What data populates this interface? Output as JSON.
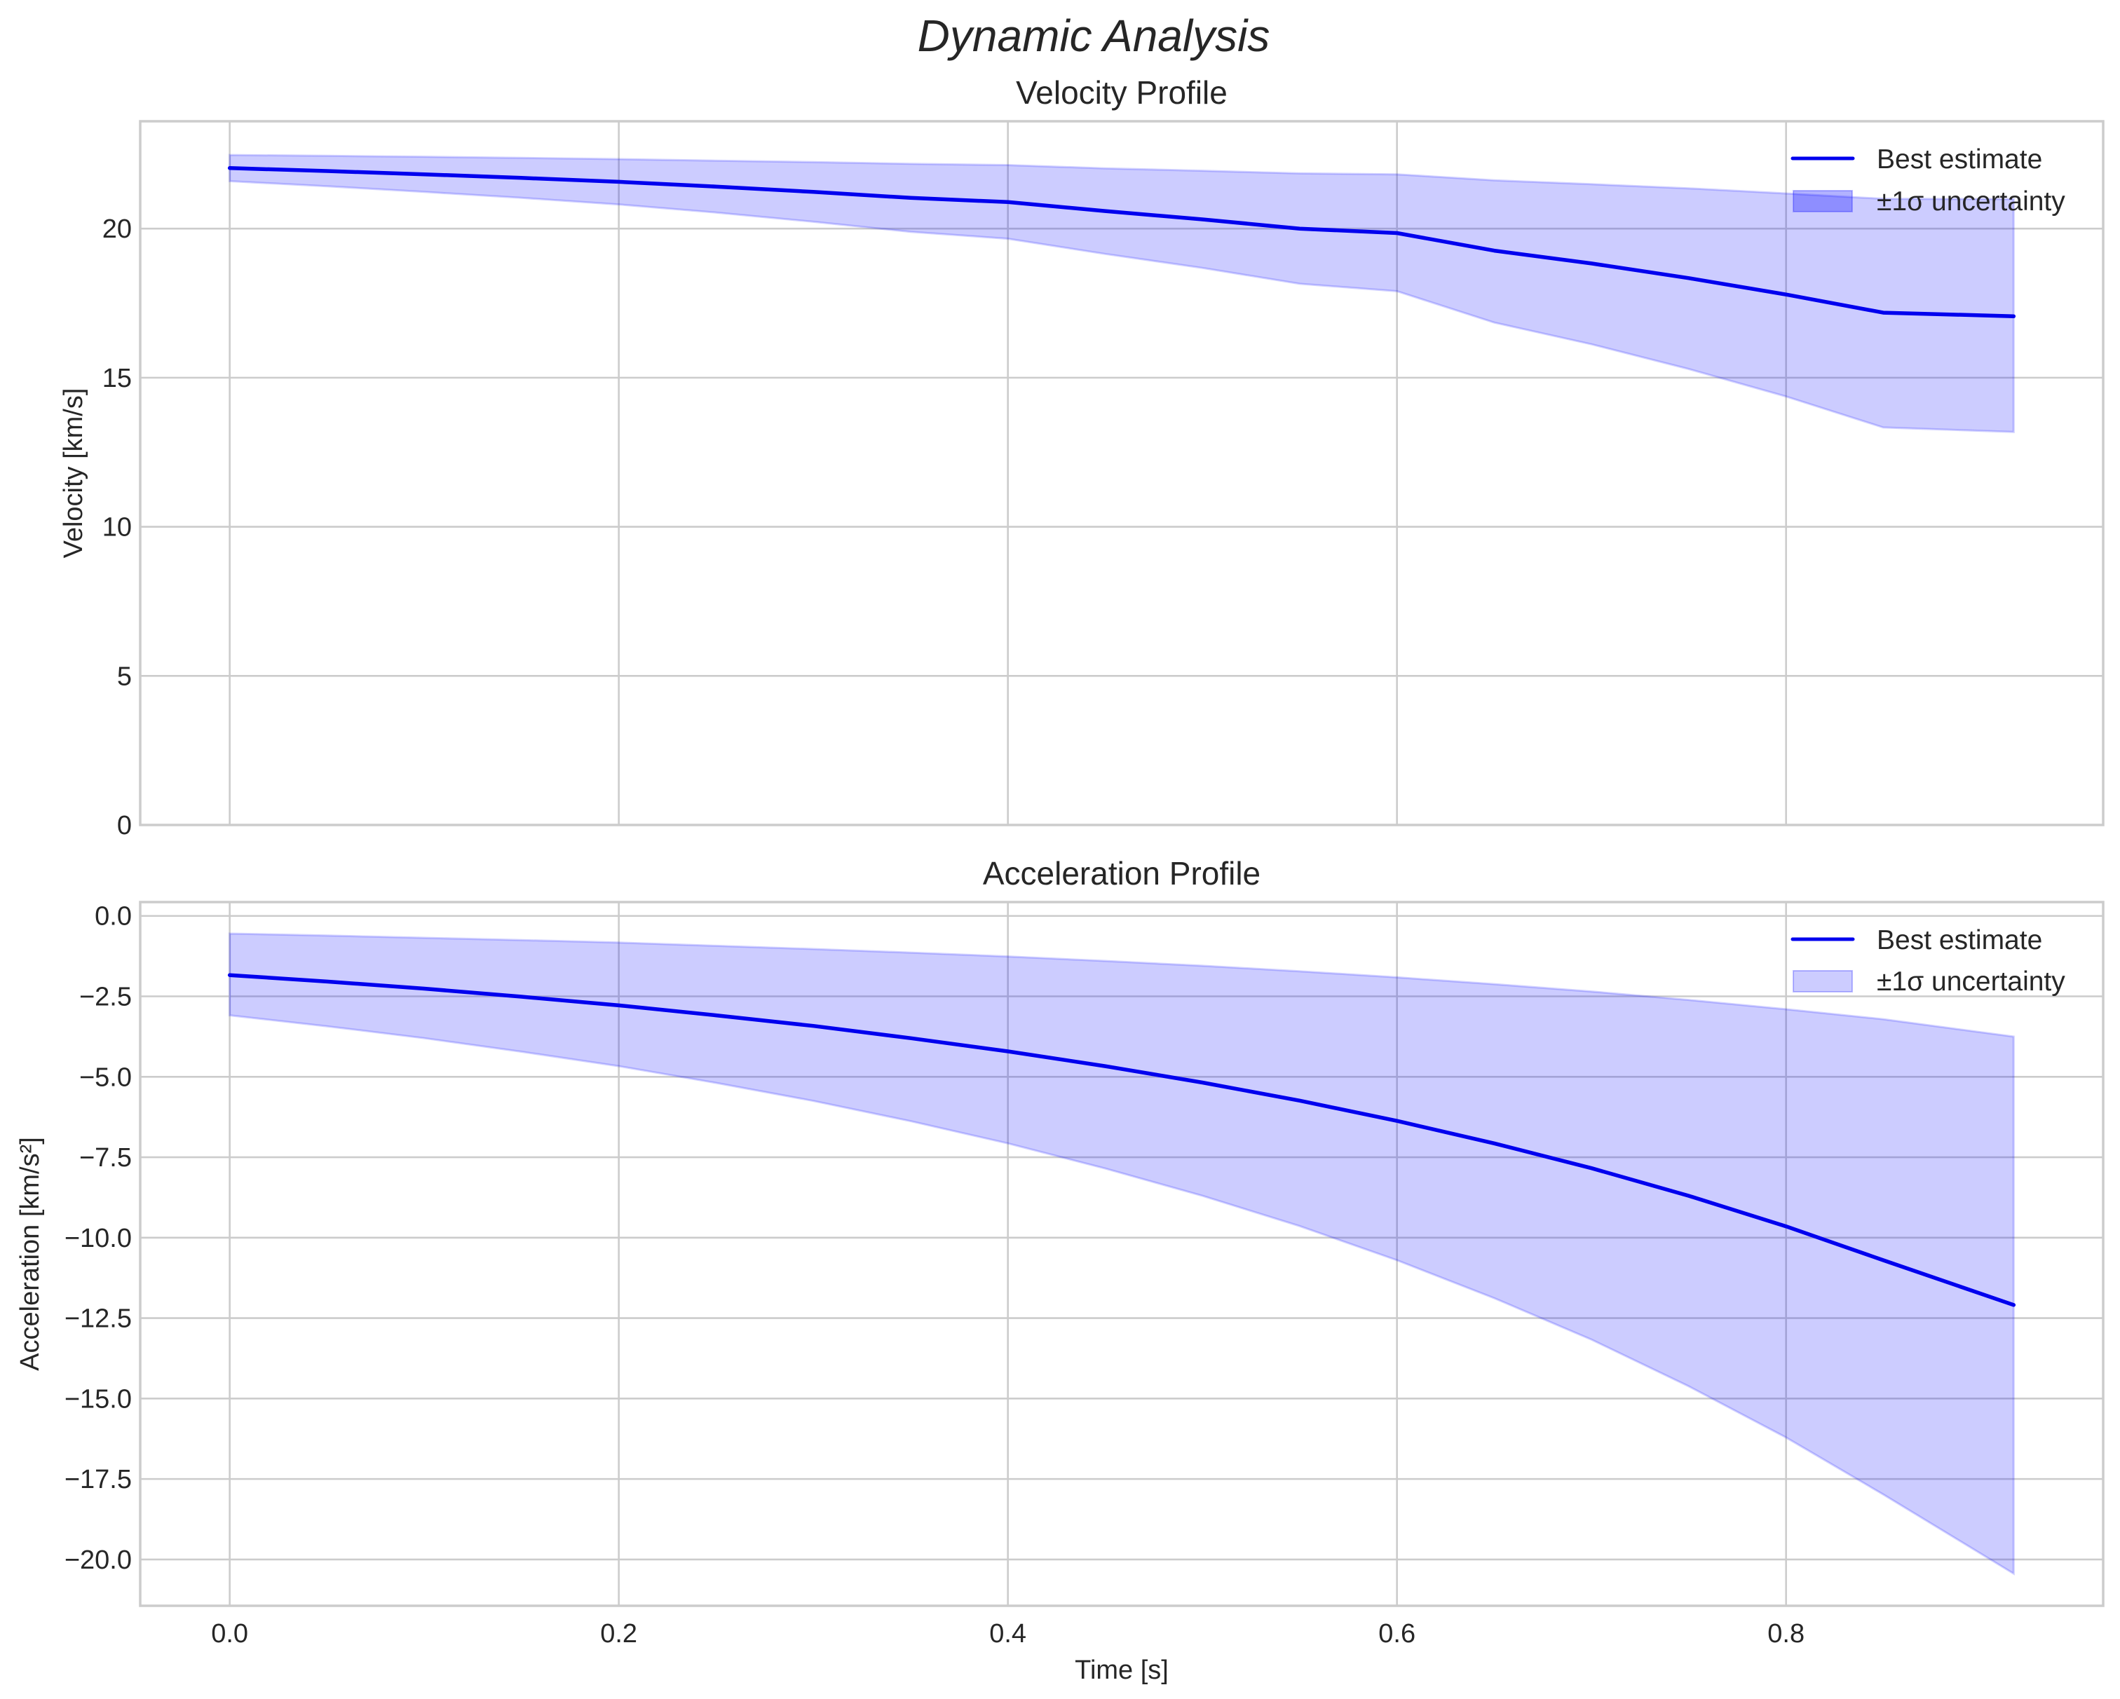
{
  "figure": {
    "title": "Dynamic Analysis",
    "line_color": "#0000ee",
    "fill_color": "#0000ff",
    "fill_alpha": 0.2,
    "grid_color": "#cccccc",
    "text_color": "#262626"
  },
  "chart_data": [
    {
      "type": "line",
      "title": "Velocity Profile",
      "xlabel": "",
      "ylabel": "Velocity [km/s]",
      "xlim": [
        -0.046,
        0.963
      ],
      "ylim": [
        0,
        23.6
      ],
      "xticks": [
        0.0,
        0.2,
        0.4,
        0.6,
        0.8
      ],
      "xtick_labels_visible": false,
      "yticks": [
        0,
        5,
        10,
        15,
        20
      ],
      "ytick_labels": [
        "0",
        "5",
        "10",
        "15",
        "20"
      ],
      "grid": true,
      "legend": {
        "position": "upper right",
        "entries": [
          "Best estimate",
          "±1σ uncertainty"
        ]
      },
      "x": [
        0.0,
        0.05,
        0.1,
        0.15,
        0.2,
        0.25,
        0.3,
        0.35,
        0.4,
        0.45,
        0.5,
        0.55,
        0.6,
        0.65,
        0.7,
        0.75,
        0.8,
        0.85,
        0.917
      ],
      "series": [
        {
          "name": "Best estimate",
          "kind": "line",
          "values": [
            22.03,
            21.93,
            21.82,
            21.7,
            21.57,
            21.41,
            21.23,
            21.03,
            20.89,
            20.59,
            20.31,
            20.0,
            19.85,
            19.26,
            18.83,
            18.34,
            17.79,
            17.18,
            17.06
          ]
        },
        {
          "name": "±1σ uncertainty (upper)",
          "kind": "band_upper",
          "values": [
            22.47,
            22.44,
            22.41,
            22.37,
            22.33,
            22.28,
            22.23,
            22.17,
            22.13,
            22.02,
            21.94,
            21.85,
            21.82,
            21.62,
            21.49,
            21.35,
            21.18,
            21.0,
            20.99
          ]
        },
        {
          "name": "±1σ uncertainty (lower)",
          "kind": "band_lower",
          "values": [
            21.59,
            21.42,
            21.23,
            21.03,
            20.81,
            20.54,
            20.23,
            19.89,
            19.66,
            19.15,
            18.68,
            18.15,
            17.9,
            16.85,
            16.12,
            15.29,
            14.37,
            13.33,
            13.18
          ]
        }
      ]
    },
    {
      "type": "line",
      "title": "Acceleration Profile",
      "xlabel": "Time [s]",
      "ylabel": "Acceleration [km/s²]",
      "xlim": [
        -0.046,
        0.963
      ],
      "ylim": [
        -21.44,
        0.43
      ],
      "xticks": [
        0.0,
        0.2,
        0.4,
        0.6,
        0.8
      ],
      "xtick_labels": [
        "0.0",
        "0.2",
        "0.4",
        "0.6",
        "0.8"
      ],
      "yticks": [
        0.0,
        -2.5,
        -5.0,
        -7.5,
        -10.0,
        -12.5,
        -15.0,
        -17.5,
        -20.0
      ],
      "ytick_labels": [
        "0.0",
        "−2.5",
        "−5.0",
        "−7.5",
        "−10.0",
        "−12.5",
        "−15.0",
        "−17.5",
        "−20.0"
      ],
      "grid": true,
      "legend": {
        "position": "upper right",
        "entries": [
          "Best estimate",
          "±1σ uncertainty"
        ]
      },
      "x": [
        0.0,
        0.05,
        0.1,
        0.15,
        0.2,
        0.25,
        0.3,
        0.35,
        0.4,
        0.45,
        0.5,
        0.55,
        0.6,
        0.65,
        0.7,
        0.75,
        0.8,
        0.85,
        0.917
      ],
      "series": [
        {
          "name": "Best estimate",
          "kind": "line",
          "values": [
            -1.84,
            -2.04,
            -2.26,
            -2.51,
            -2.78,
            -3.09,
            -3.42,
            -3.8,
            -4.21,
            -4.67,
            -5.18,
            -5.74,
            -6.37,
            -7.07,
            -7.84,
            -8.7,
            -9.65,
            -10.7,
            -12.09
          ]
        },
        {
          "name": "±1σ uncertainty (upper)",
          "kind": "band_upper",
          "values": [
            -0.55,
            -0.61,
            -0.68,
            -0.75,
            -0.83,
            -0.93,
            -1.03,
            -1.14,
            -1.26,
            -1.4,
            -1.55,
            -1.72,
            -1.91,
            -2.12,
            -2.35,
            -2.61,
            -2.9,
            -3.21,
            -3.75
          ]
        },
        {
          "name": "±1σ uncertainty (lower)",
          "kind": "band_lower",
          "values": [
            -3.09,
            -3.43,
            -3.8,
            -4.22,
            -4.67,
            -5.19,
            -5.75,
            -6.38,
            -7.07,
            -7.85,
            -8.7,
            -9.64,
            -10.7,
            -11.88,
            -13.17,
            -14.62,
            -16.21,
            -17.98,
            -20.44
          ]
        }
      ]
    }
  ]
}
